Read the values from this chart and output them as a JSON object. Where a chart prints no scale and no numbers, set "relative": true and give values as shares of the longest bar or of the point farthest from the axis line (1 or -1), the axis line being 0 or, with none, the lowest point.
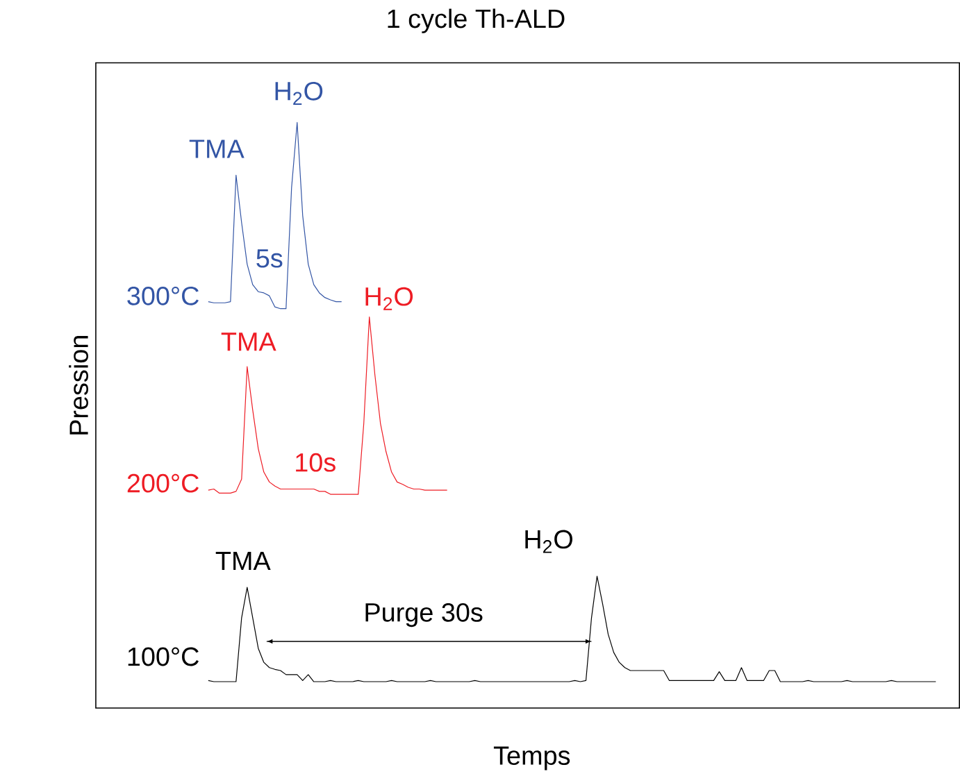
{
  "chart_data": {
    "type": "line",
    "relative": true,
    "title": "1 cycle Th-ALD",
    "xlabel": "Temps",
    "ylabel": "Pression",
    "categories": [
      null,
      null,
      null,
      null,
      null,
      null,
      null,
      null,
      null,
      null,
      null,
      null,
      null,
      null,
      null,
      null,
      null,
      null,
      null,
      null,
      null,
      null,
      null,
      null,
      null,
      null,
      null,
      null,
      null,
      null,
      null,
      null,
      null,
      null,
      null,
      null,
      null,
      null,
      null,
      null,
      null,
      null,
      null,
      null,
      null,
      null,
      null,
      null,
      null,
      null,
      null,
      null,
      null,
      null,
      null,
      null,
      null,
      null,
      null,
      null,
      null,
      null,
      null,
      null,
      null,
      null,
      null,
      null,
      null,
      null,
      null,
      null,
      null,
      null,
      null,
      null,
      null,
      null,
      null,
      null,
      null,
      null,
      null,
      null,
      null,
      null,
      null,
      null,
      null,
      null,
      null,
      null,
      null,
      null,
      null,
      null,
      null,
      null,
      null,
      null,
      null,
      null,
      null,
      null,
      null,
      null,
      null,
      null,
      null,
      null,
      null,
      null,
      null,
      null,
      null,
      null,
      null,
      null,
      null,
      null,
      null,
      null,
      null,
      null,
      null,
      null,
      null,
      null,
      null,
      null,
      null,
      null
    ],
    "series": [
      {
        "name": "300°C",
        "color": "#3355a5",
        "values": [
          0.694,
          0.692,
          0.692,
          0.692,
          0.694,
          0.91,
          0.829,
          0.758,
          0.723,
          0.711,
          0.709,
          0.704,
          0.685,
          0.682,
          0.682,
          0.889,
          1.0,
          0.841,
          0.758,
          0.723,
          0.709,
          0.701,
          0.697,
          0.694,
          0.694,
          null,
          null,
          null,
          null,
          null,
          null,
          null,
          null,
          null,
          null,
          null,
          null,
          null,
          null,
          null,
          null,
          null,
          null,
          null,
          null,
          null,
          null,
          null,
          null,
          null,
          null,
          null,
          null,
          null,
          null,
          null,
          null,
          null,
          null,
          null,
          null,
          null,
          null,
          null,
          null,
          null,
          null,
          null,
          null,
          null,
          null,
          null,
          null,
          null,
          null,
          null,
          null,
          null,
          null,
          null,
          null,
          null,
          null,
          null,
          null,
          null,
          null,
          null,
          null,
          null,
          null,
          null,
          null,
          null,
          null,
          null,
          null,
          null,
          null,
          null,
          null,
          null,
          null,
          null,
          null,
          null,
          null,
          null,
          null,
          null,
          null,
          null,
          null,
          null,
          null,
          null,
          null,
          null,
          null,
          null,
          null,
          null,
          null,
          null,
          null,
          null,
          null,
          null,
          null,
          null,
          null,
          null
        ]
      },
      {
        "name": "200°C",
        "color": "#ee1c24",
        "values": [
          0.372,
          0.374,
          0.367,
          0.367,
          0.367,
          0.37,
          0.391,
          0.583,
          0.509,
          0.443,
          0.403,
          0.386,
          0.379,
          0.374,
          0.374,
          0.374,
          0.374,
          0.374,
          0.374,
          0.374,
          0.37,
          0.37,
          0.365,
          0.365,
          0.365,
          0.365,
          0.365,
          0.365,
          0.486,
          0.668,
          0.569,
          0.486,
          0.438,
          0.403,
          0.386,
          0.382,
          0.377,
          0.374,
          0.374,
          0.372,
          0.372,
          0.372,
          0.372,
          0.372,
          null,
          null,
          null,
          null,
          null,
          null,
          null,
          null,
          null,
          null,
          null,
          null,
          null,
          null,
          null,
          null,
          null,
          null,
          null,
          null,
          null,
          null,
          null,
          null,
          null,
          null,
          null,
          null,
          null,
          null,
          null,
          null,
          null,
          null,
          null,
          null,
          null,
          null,
          null,
          null,
          null,
          null,
          null,
          null,
          null,
          null,
          null,
          null,
          null,
          null,
          null,
          null,
          null,
          null,
          null,
          null,
          null,
          null,
          null,
          null,
          null,
          null,
          null,
          null,
          null,
          null,
          null,
          null,
          null,
          null,
          null,
          null,
          null,
          null,
          null,
          null,
          null,
          null,
          null,
          null,
          null,
          null,
          null,
          null,
          null,
          null,
          null,
          null
        ]
      },
      {
        "name": "100°C",
        "color": "#000000",
        "values": [
          0.047,
          0.045,
          0.045,
          0.045,
          0.045,
          0.045,
          0.154,
          0.206,
          0.154,
          0.102,
          0.078,
          0.069,
          0.066,
          0.064,
          0.057,
          0.057,
          0.057,
          0.047,
          0.057,
          0.045,
          0.045,
          0.045,
          0.047,
          0.045,
          0.045,
          0.045,
          0.045,
          0.047,
          0.045,
          0.045,
          0.045,
          0.045,
          0.045,
          0.047,
          0.045,
          0.045,
          0.045,
          0.045,
          0.045,
          0.045,
          0.047,
          0.045,
          0.045,
          0.045,
          0.045,
          0.045,
          0.045,
          0.045,
          0.047,
          0.045,
          0.045,
          0.045,
          0.045,
          0.045,
          0.045,
          0.045,
          0.045,
          0.045,
          0.045,
          0.045,
          0.045,
          0.045,
          0.045,
          0.045,
          0.045,
          0.045,
          0.047,
          0.045,
          0.047,
          0.154,
          0.225,
          0.178,
          0.126,
          0.095,
          0.078,
          0.069,
          0.064,
          0.064,
          0.064,
          0.064,
          0.064,
          0.064,
          0.064,
          0.047,
          0.047,
          0.047,
          0.047,
          0.047,
          0.047,
          0.047,
          0.047,
          0.047,
          0.062,
          0.047,
          0.047,
          0.047,
          0.069,
          0.047,
          0.047,
          0.047,
          0.047,
          0.064,
          0.064,
          0.045,
          0.045,
          0.045,
          0.045,
          0.045,
          0.047,
          0.045,
          0.045,
          0.045,
          0.045,
          0.045,
          0.045,
          0.047,
          0.045,
          0.045,
          0.045,
          0.045,
          0.045,
          0.045,
          0.045,
          0.047,
          0.045,
          0.045,
          0.045,
          0.045,
          0.045,
          0.045,
          0.045,
          0.045
        ]
      }
    ],
    "annotations": [
      "TMA",
      "H$_{2}$O",
      "5s",
      "TMA",
      "H$_{2}$O",
      "10s",
      "TMA",
      "H$_{2}$O",
      "Purge 30s"
    ]
  }
}
